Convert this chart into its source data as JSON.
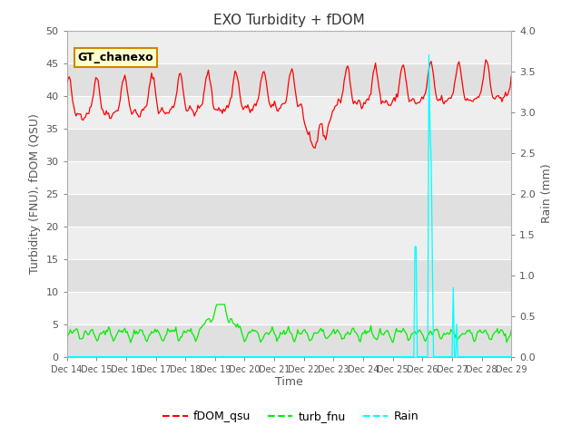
{
  "title": "EXO Turbidity + fDOM",
  "xlabel": "Time",
  "ylabel_left": "Turbidity (FNU), fDOM (QSU)",
  "ylabel_right": "Rain (mm)",
  "ylim_left": [
    0,
    50
  ],
  "ylim_right": [
    0.0,
    4.0
  ],
  "yticks_left": [
    0,
    5,
    10,
    15,
    20,
    25,
    30,
    35,
    40,
    45,
    50
  ],
  "yticks_right": [
    0.0,
    0.5,
    1.0,
    1.5,
    2.0,
    2.5,
    3.0,
    3.5,
    4.0
  ],
  "xtick_labels": [
    "Dec 14",
    "Dec 15",
    "Dec 16",
    "Dec 17",
    "Dec 18",
    "Dec 19",
    "Dec 20",
    "Dec 21",
    "Dec 22",
    "Dec 23",
    "Dec 24",
    "Dec 25",
    "Dec 26",
    "Dec 27",
    "Dec 28",
    "Dec 29"
  ],
  "annotation_text": "GT_chanexo",
  "annotation_bg": "#ffffcc",
  "annotation_edge": "#cc8800",
  "fdom_color": "#ff0000",
  "turb_color": "#00ee00",
  "rain_color": "#00ffff",
  "bg_color_light": "#eeeeee",
  "bg_color_dark": "#e0e0e0",
  "legend_labels": [
    "fDOM_qsu",
    "turb_fnu",
    "Rain"
  ],
  "title_fontsize": 11,
  "axis_label_fontsize": 9,
  "tick_fontsize": 8,
  "xtick_fontsize": 7
}
